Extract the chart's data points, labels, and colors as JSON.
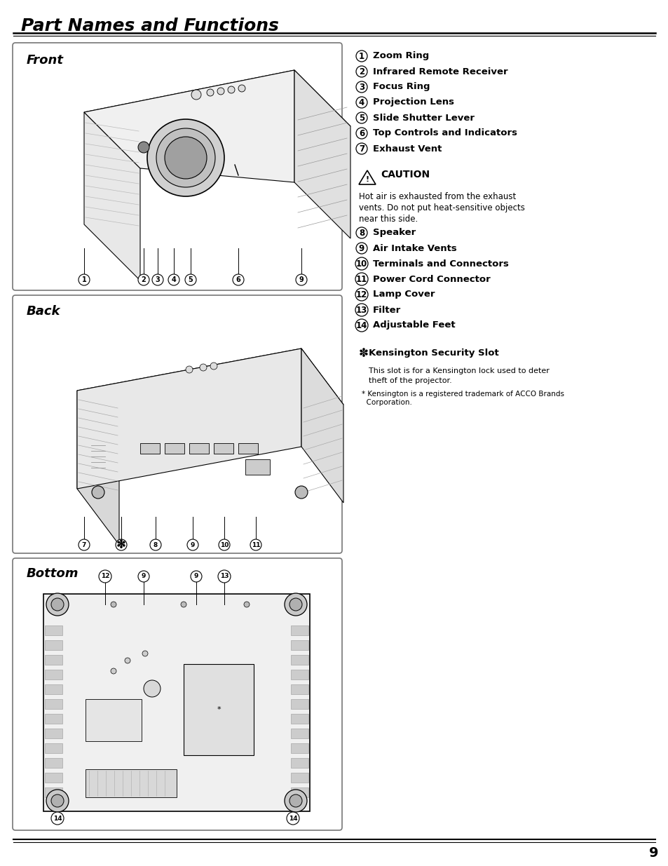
{
  "title": "Part Names and Functions",
  "bg_color": "#ffffff",
  "page_number": "9",
  "section_front": "Front",
  "section_back": "Back",
  "section_bottom": "Bottom",
  "items_front": [
    {
      "num": "1",
      "text": "Zoom Ring"
    },
    {
      "num": "2",
      "text": "Infrared Remote Receiver"
    },
    {
      "num": "3",
      "text": "Focus Ring"
    },
    {
      "num": "4",
      "text": "Projection Lens"
    },
    {
      "num": "5",
      "text": "Slide Shutter Lever"
    },
    {
      "num": "6",
      "text": "Top Controls and Indicators"
    },
    {
      "num": "7",
      "text": "Exhaust Vent"
    }
  ],
  "caution_text": "Hot air is exhausted from the exhaust\nvents. Do not put heat-sensitive objects\nnear this side.",
  "items_back": [
    {
      "num": "8",
      "text": "Speaker"
    },
    {
      "num": "9",
      "text": "Air Intake Vents"
    },
    {
      "num": "10",
      "text": "Terminals and Connectors"
    },
    {
      "num": "11",
      "text": "Power Cord Connector"
    },
    {
      "num": "12",
      "text": "Lamp Cover"
    },
    {
      "num": "13",
      "text": "Filter"
    },
    {
      "num": "14",
      "text": "Adjustable Feet"
    }
  ],
  "kensington_title": "Kensington Security Slot",
  "kensington_text": "This slot is for a Kensington lock used to deter\ntheft of the projector.",
  "kensington_footnote": "* Kensington is a registered trademark of ACCO Brands\n  Corporation.",
  "title_fontsize": 18,
  "section_fontsize": 13,
  "item_fontsize": 9.5,
  "box_color": "#f0f0f0",
  "box_border": "#888888",
  "line_color": "#333333",
  "circle_color": "#ffffff",
  "circle_border": "#000000",
  "header_line_color": "#000000",
  "footer_line_color": "#000000"
}
